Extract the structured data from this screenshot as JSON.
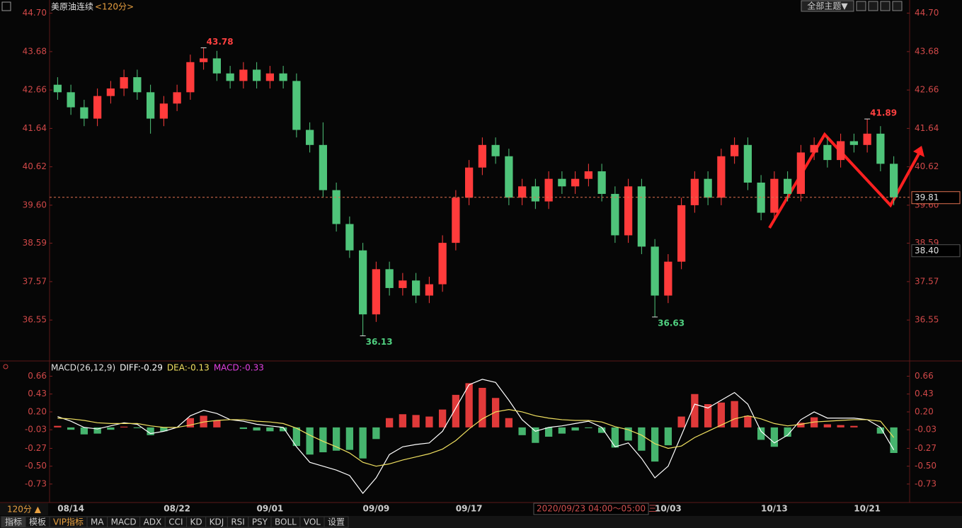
{
  "header": {
    "symbol": "美原油连续",
    "period": "<120分>",
    "theme_button": "全部主题▼"
  },
  "chart_data": [
    {
      "type": "candlestick",
      "categories": [
        null,
        "08/14",
        null,
        null,
        null,
        null,
        null,
        null,
        null,
        "08/22",
        null,
        null,
        null,
        null,
        null,
        null,
        "09/01",
        null,
        null,
        null,
        null,
        null,
        null,
        null,
        "09/09",
        null,
        null,
        null,
        null,
        null,
        null,
        "09/17",
        null,
        null,
        null,
        null,
        null,
        null,
        null,
        null,
        null,
        null,
        null,
        null,
        null,
        null,
        "10/03",
        null,
        null,
        null,
        null,
        null,
        null,
        null,
        "10/13",
        null,
        null,
        null,
        null,
        null,
        null,
        "10/21",
        null,
        null
      ],
      "open": [
        42.8,
        42.6,
        42.2,
        41.9,
        42.5,
        42.7,
        43.0,
        42.6,
        41.9,
        42.3,
        42.6,
        43.4,
        43.5,
        43.1,
        42.9,
        43.2,
        42.9,
        43.1,
        42.9,
        41.6,
        41.2,
        40.0,
        39.1,
        38.4,
        36.7,
        37.9,
        37.4,
        37.6,
        37.2,
        37.5,
        38.6,
        39.8,
        40.6,
        41.2,
        40.9,
        39.8,
        40.1,
        39.7,
        40.3,
        40.1,
        40.3,
        40.5,
        39.9,
        38.8,
        40.1,
        38.5,
        37.2,
        38.1,
        39.6,
        40.3,
        39.8,
        40.9,
        41.2,
        40.2,
        39.4,
        40.3,
        39.9,
        41.0,
        41.2,
        40.8,
        41.3,
        41.2,
        41.5,
        40.7
      ],
      "high": [
        43.0,
        42.8,
        42.4,
        42.7,
        42.9,
        43.2,
        43.2,
        42.8,
        42.5,
        42.8,
        43.6,
        43.78,
        43.7,
        43.3,
        43.4,
        43.4,
        43.3,
        43.3,
        43.1,
        41.8,
        41.8,
        40.2,
        39.3,
        38.6,
        38.1,
        38.1,
        37.8,
        37.8,
        37.7,
        38.8,
        40.0,
        40.8,
        41.4,
        41.4,
        41.1,
        40.3,
        40.3,
        40.5,
        40.5,
        40.5,
        40.7,
        40.7,
        40.1,
        40.3,
        40.3,
        38.7,
        38.3,
        39.8,
        40.5,
        40.5,
        41.1,
        41.4,
        41.4,
        40.4,
        40.5,
        40.5,
        41.2,
        41.4,
        41.4,
        41.5,
        41.5,
        41.89,
        41.7,
        40.9
      ],
      "low": [
        42.4,
        42.0,
        41.7,
        41.7,
        42.3,
        42.5,
        42.4,
        41.5,
        41.7,
        42.1,
        42.4,
        43.2,
        42.9,
        42.7,
        42.7,
        42.7,
        42.7,
        42.7,
        41.4,
        41.0,
        39.8,
        38.9,
        38.2,
        36.13,
        36.5,
        37.2,
        37.2,
        37.0,
        37.0,
        37.3,
        38.4,
        39.6,
        40.4,
        40.7,
        39.6,
        39.6,
        39.5,
        39.5,
        39.9,
        39.9,
        40.1,
        39.7,
        38.6,
        38.6,
        38.3,
        36.63,
        37.0,
        37.9,
        39.4,
        39.6,
        39.6,
        40.7,
        40.0,
        39.2,
        39.2,
        39.7,
        39.7,
        40.8,
        40.6,
        40.6,
        41.0,
        41.0,
        40.5,
        39.6
      ],
      "close": [
        42.6,
        42.2,
        41.9,
        42.5,
        42.7,
        43.0,
        42.6,
        41.9,
        42.3,
        42.6,
        43.4,
        43.5,
        43.1,
        42.9,
        43.2,
        42.9,
        43.1,
        42.9,
        41.6,
        41.2,
        40.0,
        39.1,
        38.4,
        36.7,
        37.9,
        37.4,
        37.6,
        37.2,
        37.5,
        38.6,
        39.8,
        40.6,
        41.2,
        40.9,
        39.8,
        40.1,
        39.7,
        40.3,
        40.1,
        40.3,
        40.5,
        39.9,
        38.8,
        40.1,
        38.5,
        37.2,
        38.1,
        39.6,
        40.3,
        39.8,
        40.9,
        41.2,
        40.2,
        39.4,
        40.3,
        39.9,
        41.0,
        41.2,
        40.8,
        41.3,
        41.2,
        41.5,
        40.7,
        39.81
      ],
      "up_color": "#ff3b3b",
      "down_color": "#4fc47a",
      "ylim": [
        35.5,
        44.9
      ],
      "yticks": [
        {
          "value": 44.7,
          "label": "44.70"
        },
        43.68,
        42.66,
        41.64,
        40.62,
        {
          "value": 39.6,
          "label": "39.60"
        },
        38.59,
        37.57,
        36.55
      ],
      "crosshair_price": {
        "value": 38.4,
        "label": "38.40"
      },
      "crosshair_time": "2020/09/23 04:00～05:00 三"
    },
    {
      "type": "macd",
      "title": "MACD(26,12,9)",
      "ylim": [
        -0.95,
        0.82
      ],
      "yticks": [
        0.66,
        0.43,
        {
          "value": 0.2,
          "label": "0.20"
        },
        -0.03,
        -0.27,
        {
          "value": -0.5,
          "label": "-0.50"
        },
        -0.73
      ],
      "series": [
        {
          "label": "DIFF:-0.29",
          "color": "#ffffff",
          "values": [
            0.14,
            0.08,
            0.0,
            -0.02,
            0.02,
            0.06,
            0.04,
            -0.08,
            -0.05,
            0.0,
            0.15,
            0.22,
            0.18,
            0.1,
            0.08,
            0.04,
            0.02,
            0.0,
            -0.25,
            -0.45,
            -0.5,
            -0.55,
            -0.62,
            -0.85,
            -0.65,
            -0.35,
            -0.25,
            -0.22,
            -0.2,
            -0.05,
            0.25,
            0.55,
            0.62,
            0.58,
            0.35,
            0.1,
            -0.05,
            0.0,
            0.02,
            0.05,
            0.08,
            0.0,
            -0.25,
            -0.2,
            -0.4,
            -0.65,
            -0.5,
            -0.1,
            0.3,
            0.25,
            0.35,
            0.45,
            0.3,
            -0.05,
            -0.2,
            -0.1,
            0.1,
            0.2,
            0.12,
            0.12,
            0.12,
            0.1,
            0.0,
            -0.29
          ]
        },
        {
          "label": "DEA:-0.13",
          "color": "#f0e060",
          "values": [
            0.12,
            0.11,
            0.09,
            0.06,
            0.05,
            0.05,
            0.05,
            0.02,
            0.0,
            0.0,
            0.03,
            0.07,
            0.09,
            0.1,
            0.1,
            0.08,
            0.07,
            0.05,
            -0.01,
            -0.1,
            -0.18,
            -0.25,
            -0.33,
            -0.45,
            -0.5,
            -0.47,
            -0.42,
            -0.38,
            -0.34,
            -0.28,
            -0.17,
            -0.02,
            0.11,
            0.2,
            0.23,
            0.2,
            0.15,
            0.12,
            0.1,
            0.09,
            0.09,
            0.07,
            0.01,
            -0.03,
            -0.1,
            -0.21,
            -0.27,
            -0.24,
            -0.13,
            -0.05,
            0.03,
            0.11,
            0.15,
            0.11,
            0.05,
            0.02,
            0.04,
            0.07,
            0.08,
            0.09,
            0.1,
            0.1,
            0.08,
            -0.13
          ]
        },
        {
          "label": "MACD:-0.33",
          "color": "#e040e0",
          "up_color": "#e03a3a",
          "down_color": "#46b46e",
          "values": [
            0.02,
            -0.03,
            -0.09,
            -0.08,
            -0.03,
            0.01,
            -0.01,
            -0.1,
            -0.05,
            0.0,
            0.12,
            0.15,
            0.09,
            0.0,
            -0.02,
            -0.04,
            -0.05,
            -0.05,
            -0.24,
            -0.35,
            -0.32,
            -0.3,
            -0.29,
            -0.4,
            -0.15,
            0.12,
            0.17,
            0.16,
            0.14,
            0.23,
            0.42,
            0.57,
            0.51,
            0.38,
            0.12,
            -0.1,
            -0.2,
            -0.12,
            -0.08,
            -0.04,
            -0.01,
            -0.07,
            -0.26,
            -0.17,
            -0.3,
            -0.44,
            -0.23,
            0.14,
            0.43,
            0.3,
            0.32,
            0.34,
            0.15,
            -0.16,
            -0.25,
            -0.12,
            0.06,
            0.13,
            0.04,
            0.03,
            0.02,
            0.0,
            -0.08,
            -0.33
          ]
        }
      ]
    }
  ],
  "toolbar": {
    "period_button": "120分 ▲",
    "tabs": [
      "指标",
      "模板",
      "VIP指标",
      "MA",
      "MACD",
      "ADX",
      "CCI",
      "KD",
      "KDJ",
      "RSI",
      "PSY",
      "BOLL",
      "VOL",
      "设置"
    ]
  }
}
